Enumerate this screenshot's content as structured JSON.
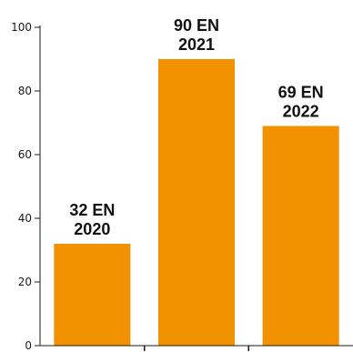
{
  "chart_data": {
    "type": "bar",
    "categories": [
      "2020",
      "2021",
      "2022"
    ],
    "values": [
      32,
      90,
      69
    ],
    "data_labels": [
      [
        "32 EN",
        "2020"
      ],
      [
        "90 EN",
        "2021"
      ],
      [
        "69 EN",
        "2022"
      ]
    ],
    "title": "",
    "xlabel": "",
    "ylabel": "",
    "ylim": [
      0,
      100
    ],
    "yticks": [
      "0",
      "20",
      "40",
      "60",
      "80",
      "100"
    ],
    "grid": false,
    "legend": "none",
    "bar_color": "#f39200",
    "axis_color": "#1a1a1a"
  }
}
